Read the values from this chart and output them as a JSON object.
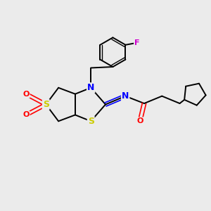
{
  "background_color": "#ebebeb",
  "figsize": [
    3.0,
    3.0
  ],
  "dpi": 100,
  "atom_colors": {
    "C": "#000000",
    "N": "#0000ff",
    "S": "#cccc00",
    "O": "#ff0000",
    "F": "#cc00cc",
    "H": "#000000"
  },
  "bond_color": "#000000",
  "bond_width": 1.4,
  "font_size_atom": 7
}
